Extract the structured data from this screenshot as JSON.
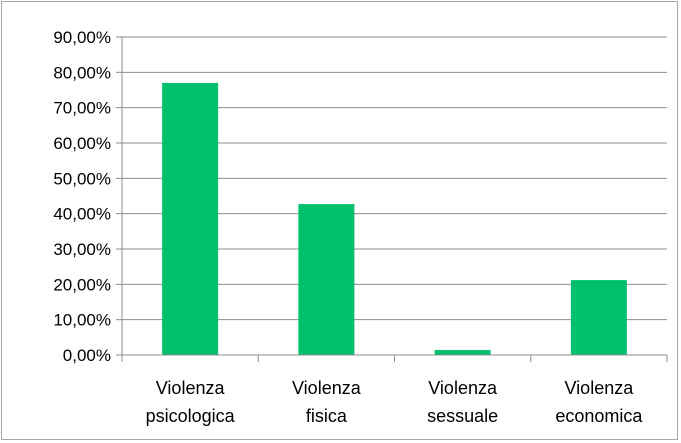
{
  "chart_data": {
    "type": "bar",
    "categories": [
      [
        "Violenza",
        "psicologica"
      ],
      [
        "Violenza",
        "fisica"
      ],
      [
        "Violenza",
        "sessuale"
      ],
      [
        "Violenza",
        "economica"
      ]
    ],
    "values": [
      77.0,
      42.7,
      1.4,
      21.2
    ],
    "ylim": [
      0,
      90
    ],
    "ytick_step": 10,
    "ytick_labels": [
      "0,00%",
      "10,00%",
      "20,00%",
      "30,00%",
      "40,00%",
      "50,00%",
      "60,00%",
      "70,00%",
      "80,00%",
      "90,00%"
    ],
    "grid": true,
    "legend": "none",
    "colors": {
      "bar": "#00c06b",
      "grid": "#8c8c8c",
      "axis": "#8c8c8c",
      "border": "#a6a6a6"
    }
  }
}
